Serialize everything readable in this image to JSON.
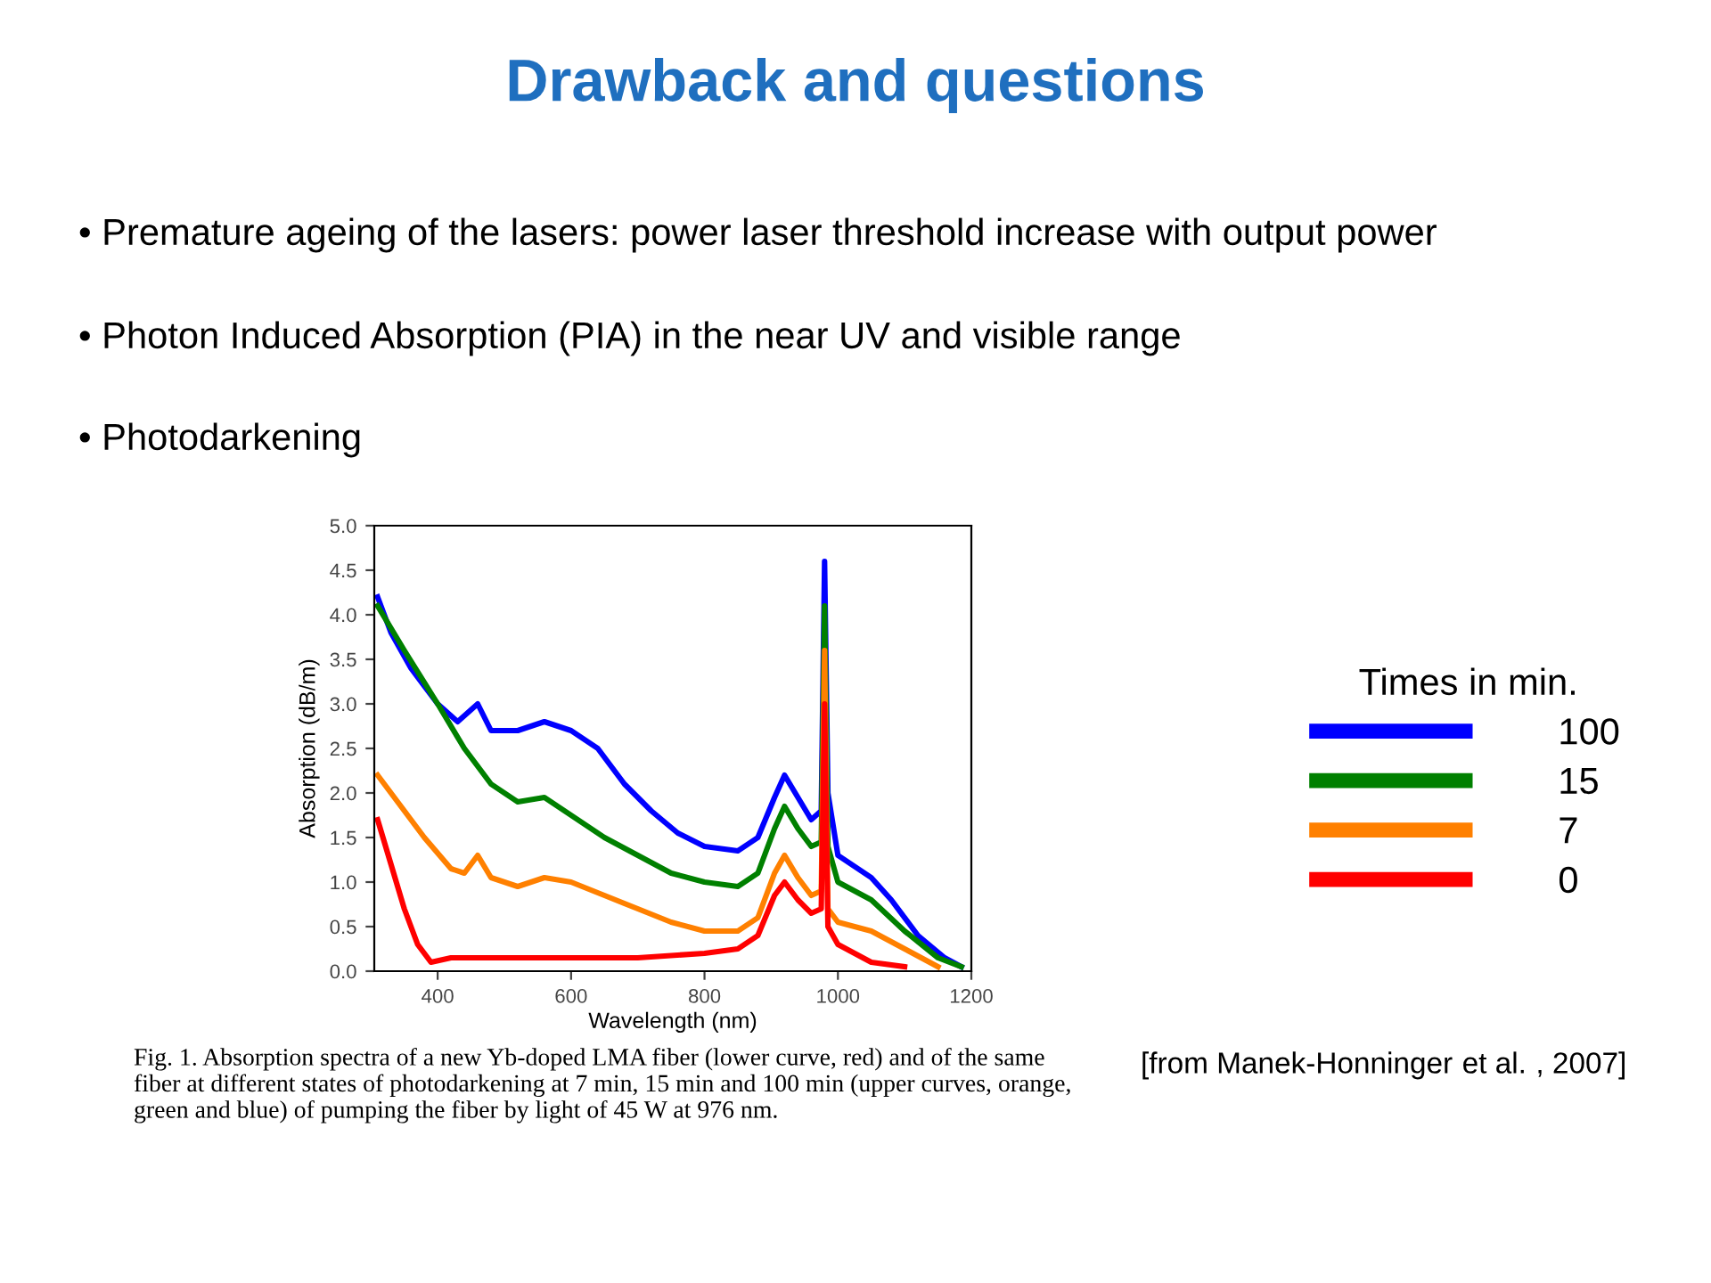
{
  "chart_data": {
    "type": "line",
    "title": "Drawback and questions",
    "xlabel": "Wavelength (nm)",
    "ylabel": "Absorption (dB/m)",
    "xlim": [
      305,
      1200
    ],
    "xticks": [
      400,
      600,
      800,
      1000,
      1200
    ],
    "ylim": [
      0,
      5
    ],
    "yticks": [
      {
        "value": 0,
        "label": "0.0"
      },
      0.5,
      {
        "value": 1,
        "label": "1.0"
      },
      1.5,
      {
        "value": 2,
        "label": "2.0"
      },
      2.5,
      {
        "value": 3,
        "label": "3.0"
      },
      3.5,
      {
        "value": 4,
        "label": "4.0"
      },
      4.5,
      {
        "value": 5,
        "label": "5.0"
      }
    ],
    "grid": false,
    "marker": "none",
    "line_style": "solid",
    "legend": "right",
    "legend_title": "Times in min.",
    "annotations": [
      "• Premature ageing of the lasers: power laser threshold increase with output power",
      "• Photon Induced Absorption (PIA) in the near UV and visible range",
      "• Photodarkening",
      "Fig. 1. Absorption spectra of a new Yb-doped LMA fiber (lower curve, red) and of the same fiber at different states of photodarkening at 7 min, 15 min and 100 min (upper curves, orange, green and blue) of pumping the fiber by light of 45 W at 976 nm.",
      "[from Manek-Honninger $_{}$et al.$_{}$ , 2007]"
    ],
    "series": [
      {
        "name": "100",
        "color": "#0000ff",
        "x": [
          310,
          330,
          360,
          400,
          430,
          460,
          480,
          520,
          560,
          600,
          640,
          680,
          720,
          760,
          800,
          850,
          880,
          905,
          920,
          940,
          960,
          975,
          980,
          985,
          1000,
          1050,
          1080,
          1120,
          1160,
          1185
        ],
        "values": [
          4.2,
          3.8,
          3.4,
          3.0,
          2.8,
          3.0,
          2.7,
          2.7,
          2.8,
          2.7,
          2.5,
          2.1,
          1.8,
          1.55,
          1.4,
          1.35,
          1.5,
          1.95,
          2.2,
          1.95,
          1.7,
          1.8,
          4.6,
          2.0,
          1.3,
          1.05,
          0.8,
          0.4,
          0.15,
          0.05
        ]
      },
      {
        "name": "15",
        "color": "#008000",
        "x": [
          310,
          350,
          400,
          440,
          480,
          520,
          560,
          600,
          650,
          700,
          750,
          800,
          850,
          880,
          905,
          920,
          940,
          960,
          975,
          980,
          985,
          1000,
          1050,
          1100,
          1150,
          1185
        ],
        "values": [
          4.1,
          3.6,
          3.0,
          2.5,
          2.1,
          1.9,
          1.95,
          1.75,
          1.5,
          1.3,
          1.1,
          1.0,
          0.95,
          1.1,
          1.6,
          1.85,
          1.6,
          1.4,
          1.45,
          4.1,
          1.4,
          1.0,
          0.8,
          0.45,
          0.15,
          0.05
        ]
      },
      {
        "name": "7",
        "color": "#ff8000",
        "x": [
          310,
          340,
          380,
          420,
          440,
          460,
          480,
          520,
          560,
          600,
          650,
          700,
          750,
          800,
          850,
          880,
          905,
          920,
          940,
          960,
          975,
          980,
          985,
          1000,
          1050,
          1100,
          1150
        ],
        "values": [
          2.2,
          1.9,
          1.5,
          1.15,
          1.1,
          1.3,
          1.05,
          0.95,
          1.05,
          1.0,
          0.85,
          0.7,
          0.55,
          0.45,
          0.45,
          0.6,
          1.1,
          1.3,
          1.05,
          0.85,
          0.9,
          3.6,
          0.7,
          0.55,
          0.45,
          0.25,
          0.05
        ]
      },
      {
        "name": "0",
        "color": "#ff0000",
        "x": [
          310,
          330,
          350,
          370,
          390,
          420,
          500,
          600,
          700,
          800,
          850,
          880,
          905,
          920,
          940,
          960,
          975,
          980,
          985,
          1000,
          1050,
          1100
        ],
        "values": [
          1.7,
          1.2,
          0.7,
          0.3,
          0.1,
          0.15,
          0.15,
          0.15,
          0.15,
          0.2,
          0.25,
          0.4,
          0.85,
          1.0,
          0.8,
          0.65,
          0.7,
          3.0,
          0.5,
          0.3,
          0.1,
          0.05
        ]
      }
    ]
  }
}
